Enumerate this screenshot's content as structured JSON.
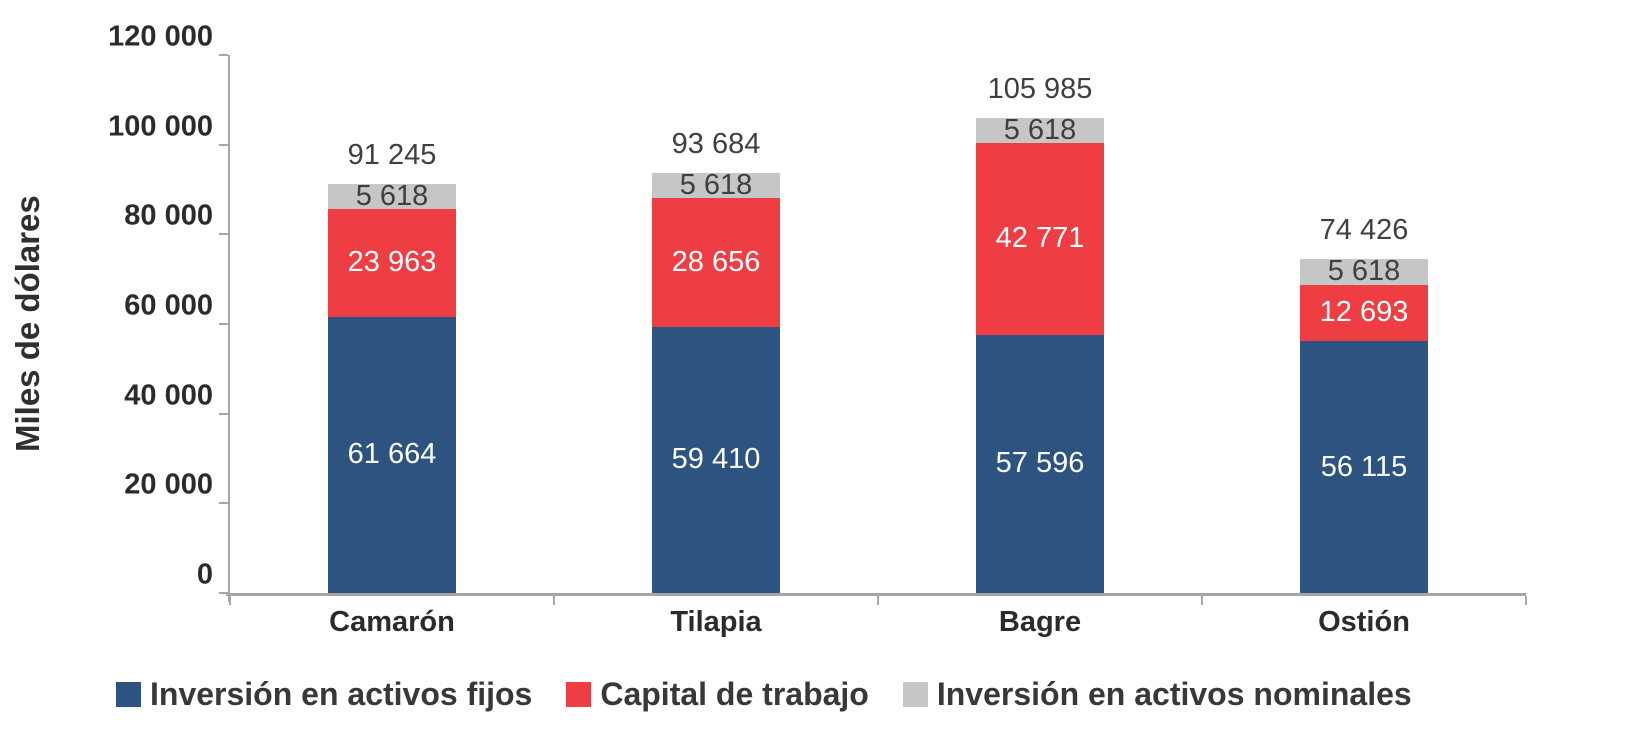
{
  "chart_data": {
    "type": "bar",
    "stacked": true,
    "ylabel": "Miles de dólares",
    "categories": [
      "Camarón",
      "Tilapia",
      "Bagre",
      "Ostión"
    ],
    "series": [
      {
        "name": "Inversión en activos fijos",
        "color": "#2d5380",
        "label_color": "#ffffff",
        "values": [
          61664,
          59410,
          57596,
          56115
        ],
        "labels": [
          "61 664",
          "59 410",
          "57 596",
          "56 115"
        ]
      },
      {
        "name": "Capital de trabajo",
        "color": "#ee3e44",
        "label_color": "#ffffff",
        "values": [
          23963,
          28656,
          42771,
          12693
        ],
        "labels": [
          "23 963",
          "28 656",
          "42 771",
          "12 693"
        ]
      },
      {
        "name": "Inversión en activos nominales",
        "color": "#c6c6c6",
        "label_color": "#3f3f3f",
        "values": [
          5618,
          5618,
          5618,
          5618
        ],
        "labels": [
          "5 618",
          "5 618",
          "5 618",
          "5 618"
        ]
      }
    ],
    "totals": {
      "values": [
        91245,
        93684,
        105985,
        74426
      ],
      "labels": [
        "91 245",
        "93 684",
        "105 985",
        "74 426"
      ]
    },
    "ylim": [
      0,
      120000
    ],
    "y_ticks": [
      {
        "value": 0,
        "label": "0"
      },
      {
        "value": 20000,
        "label": "20 000"
      },
      {
        "value": 40000,
        "label": "40 000"
      },
      {
        "value": 60000,
        "label": "60 000"
      },
      {
        "value": 80000,
        "label": "80 000"
      },
      {
        "value": 100000,
        "label": "100 000"
      },
      {
        "value": 120000,
        "label": "120 000"
      }
    ],
    "legend_position": "bottom",
    "grid": false,
    "axis_color": "#a6a6a6"
  }
}
